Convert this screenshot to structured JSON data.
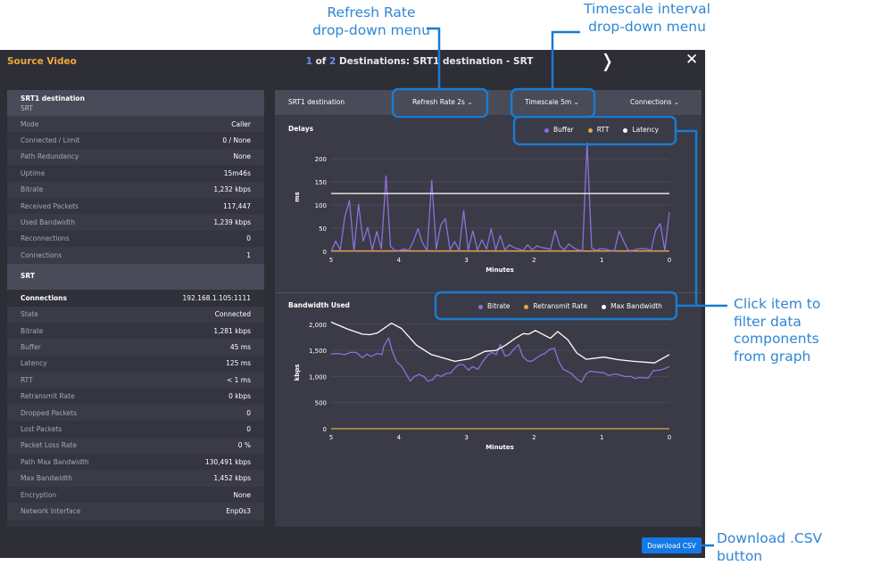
{
  "header": {
    "source": "Source Video",
    "title_current": "1",
    "title_of": " of ",
    "title_total": "2",
    "title_rest": " Destinations: SRT1 destination - SRT",
    "next_icon": "chevron-right",
    "close_icon": "close"
  },
  "left": {
    "dest_title": "SRT1 destination",
    "dest_sub": "SRT",
    "dest_rows": [
      {
        "k": "Mode",
        "v": "Caller"
      },
      {
        "k": "Connected / Limit",
        "v": "0 / None"
      },
      {
        "k": "Path Redundancy",
        "v": "None"
      },
      {
        "k": "Uptime",
        "v": "15m46s"
      },
      {
        "k": "Bitrate",
        "v": "1,232 kbps"
      },
      {
        "k": "Received Packets",
        "v": "117,447"
      },
      {
        "k": "Used Bandwidth",
        "v": "1,239 kbps"
      },
      {
        "k": "Reconnections",
        "v": "0"
      },
      {
        "k": "Connections",
        "v": "1"
      }
    ],
    "srt_title": "SRT",
    "conn_label": "Connections",
    "conn_value": "192.168.1.105:1111",
    "srt_rows": [
      {
        "k": "State",
        "v": "Connected"
      },
      {
        "k": "Bitrate",
        "v": "1,281 kbps"
      },
      {
        "k": "Buffer",
        "v": "45 ms"
      },
      {
        "k": "Latency",
        "v": "125 ms"
      },
      {
        "k": "RTT",
        "v": "< 1 ms"
      },
      {
        "k": "Retransmit Rate",
        "v": "0 kbps"
      },
      {
        "k": "Dropped Packets",
        "v": "0"
      },
      {
        "k": "Lost Packets",
        "v": "0"
      },
      {
        "k": "Packet Loss Rate",
        "v": "0 %"
      },
      {
        "k": "Path Max Bandwidth",
        "v": "130,491 kbps"
      },
      {
        "k": "Max Bandwidth",
        "v": "1,452 kbps"
      },
      {
        "k": "Encryption",
        "v": "None"
      },
      {
        "k": "Network Interface",
        "v": "Enp0s3"
      }
    ]
  },
  "toolbar": {
    "dest": "SRT1 destination",
    "refresh": "Refresh Rate 2s",
    "timescale": "Timescale 5m",
    "connections": "Connections"
  },
  "colors": {
    "purple": "#8f6fd8",
    "orange": "#e3a83c",
    "white": "#ffffff",
    "accent": "#1479e6",
    "annotation": "#2f86d4"
  },
  "chart_data": [
    {
      "type": "line",
      "title": "Delays",
      "xlabel": "Minutes",
      "ylabel": "ms",
      "xlim": [
        5,
        0
      ],
      "ylim": [
        0,
        235
      ],
      "yticks": [
        0,
        50,
        100,
        150,
        200
      ],
      "xticks": [
        5,
        4,
        3,
        2,
        1,
        0
      ],
      "grid": true,
      "legend": "top-right",
      "series": [
        {
          "name": "Buffer",
          "color": "#8f6fd8",
          "values": [
            0,
            22,
            3,
            75,
            110,
            0,
            102,
            22,
            52,
            3,
            43,
            5,
            163,
            10,
            2,
            2,
            5,
            2,
            22,
            49,
            18,
            2,
            153,
            5,
            57,
            71,
            3,
            21,
            2,
            88,
            3,
            44,
            3,
            25,
            5,
            49,
            3,
            34,
            3,
            14,
            8,
            5,
            2,
            14,
            3,
            12,
            8,
            7,
            4,
            45,
            12,
            3,
            16,
            8,
            3,
            2,
            235,
            7,
            2,
            6,
            5,
            2,
            2,
            44,
            22,
            2,
            2,
            5,
            6,
            5,
            2,
            45,
            60,
            2,
            85
          ]
        },
        {
          "name": "RTT",
          "color": "#e3a83c",
          "values": [
            1,
            1,
            1,
            1,
            1,
            1,
            1,
            1,
            1,
            1,
            1
          ]
        },
        {
          "name": "Latency",
          "color": "#ffffff",
          "values": [
            125,
            125
          ]
        }
      ]
    },
    {
      "type": "line",
      "title": "Bandwidth Used",
      "xlabel": "Minutes",
      "ylabel": "kbps",
      "xlim": [
        5,
        0
      ],
      "ylim": [
        0,
        2150
      ],
      "yticks": [
        0,
        500,
        1000,
        1500,
        2000
      ],
      "ytick_labels": [
        "0",
        "500",
        "1,000",
        "1,500",
        "2,000"
      ],
      "xticks": [
        5,
        4,
        3,
        2,
        1,
        0
      ],
      "grid": true,
      "legend": "top-right",
      "series": [
        {
          "name": "Bitrate",
          "color": "#8f6fd8",
          "points": [
            [
              5,
              1430
            ],
            [
              4.89,
              1440
            ],
            [
              4.8,
              1420
            ],
            [
              4.71,
              1460
            ],
            [
              4.63,
              1460
            ],
            [
              4.54,
              1360
            ],
            [
              4.47,
              1430
            ],
            [
              4.41,
              1380
            ],
            [
              4.32,
              1440
            ],
            [
              4.25,
              1420
            ],
            [
              4.22,
              1580
            ],
            [
              4.15,
              1740
            ],
            [
              4.1,
              1500
            ],
            [
              4.03,
              1280
            ],
            [
              3.96,
              1200
            ],
            [
              3.83,
              910
            ],
            [
              3.77,
              1000
            ],
            [
              3.7,
              1040
            ],
            [
              3.63,
              1000
            ],
            [
              3.57,
              910
            ],
            [
              3.5,
              940
            ],
            [
              3.44,
              1030
            ],
            [
              3.37,
              1000
            ],
            [
              3.3,
              1060
            ],
            [
              3.24,
              1060
            ],
            [
              3.17,
              1160
            ],
            [
              3.11,
              1230
            ],
            [
              3.04,
              1220
            ],
            [
              2.97,
              1120
            ],
            [
              2.91,
              1190
            ],
            [
              2.83,
              1140
            ],
            [
              2.75,
              1300
            ],
            [
              2.69,
              1400
            ],
            [
              2.62,
              1460
            ],
            [
              2.56,
              1420
            ],
            [
              2.5,
              1610
            ],
            [
              2.43,
              1390
            ],
            [
              2.37,
              1410
            ],
            [
              2.3,
              1520
            ],
            [
              2.23,
              1610
            ],
            [
              2.17,
              1390
            ],
            [
              2.1,
              1300
            ],
            [
              2.04,
              1290
            ],
            [
              1.97,
              1350
            ],
            [
              1.9,
              1410
            ],
            [
              1.84,
              1440
            ],
            [
              1.77,
              1520
            ],
            [
              1.7,
              1540
            ],
            [
              1.64,
              1300
            ],
            [
              1.57,
              1140
            ],
            [
              1.44,
              1050
            ],
            [
              1.37,
              950
            ],
            [
              1.3,
              890
            ],
            [
              1.23,
              1050
            ],
            [
              1.17,
              1100
            ],
            [
              1.06,
              1080
            ],
            [
              0.97,
              1070
            ],
            [
              0.9,
              1020
            ],
            [
              0.79,
              1050
            ],
            [
              0.66,
              1000
            ],
            [
              0.57,
              1000
            ],
            [
              0.51,
              960
            ],
            [
              0.44,
              980
            ],
            [
              0.31,
              970
            ],
            [
              0.24,
              1110
            ],
            [
              0.15,
              1120
            ],
            [
              0.09,
              1140
            ],
            [
              0,
              1190
            ]
          ]
        },
        {
          "name": "Retransmit Rate",
          "color": "#e3a83c",
          "points": [
            [
              5,
              0
            ],
            [
              0,
              0
            ]
          ]
        },
        {
          "name": "Max Bandwidth",
          "color": "#ffffff",
          "points": [
            [
              5,
              2040
            ],
            [
              4.76,
              1910
            ],
            [
              4.54,
              1810
            ],
            [
              4.43,
              1800
            ],
            [
              4.32,
              1830
            ],
            [
              4.11,
              2020
            ],
            [
              3.96,
              1920
            ],
            [
              3.74,
              1600
            ],
            [
              3.52,
              1420
            ],
            [
              3.41,
              1380
            ],
            [
              3.17,
              1290
            ],
            [
              2.95,
              1340
            ],
            [
              2.73,
              1480
            ],
            [
              2.56,
              1500
            ],
            [
              2.42,
              1600
            ],
            [
              2.29,
              1720
            ],
            [
              2.16,
              1820
            ],
            [
              2.08,
              1810
            ],
            [
              1.98,
              1880
            ],
            [
              1.76,
              1730
            ],
            [
              1.65,
              1860
            ],
            [
              1.5,
              1700
            ],
            [
              1.37,
              1450
            ],
            [
              1.23,
              1330
            ],
            [
              0.97,
              1370
            ],
            [
              0.75,
              1320
            ],
            [
              0.53,
              1290
            ],
            [
              0.22,
              1260
            ],
            [
              0,
              1420
            ]
          ]
        }
      ]
    }
  ],
  "download": "Download CSV",
  "annotations": {
    "refresh": [
      "Refresh Rate",
      "drop-down menu"
    ],
    "timescale": [
      "Timescale interval",
      "drop-down menu"
    ],
    "filter": [
      "Click item to",
      "filter data",
      "components",
      "from graph"
    ],
    "download": [
      "Download .CSV",
      "button"
    ]
  }
}
